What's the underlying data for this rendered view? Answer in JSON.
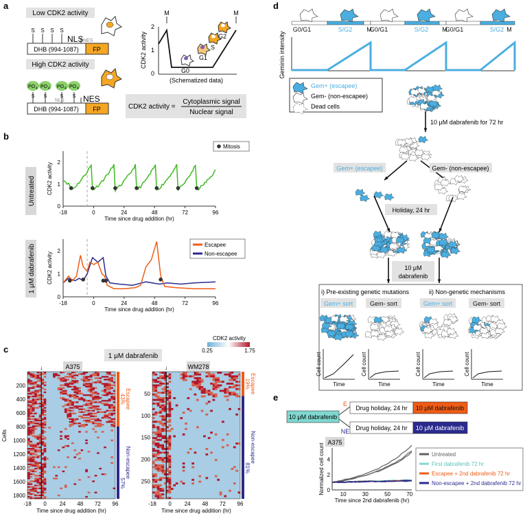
{
  "panel_letters": [
    "a",
    "b",
    "c",
    "d",
    "e"
  ],
  "a": {
    "low_title": "Low CDK2 activity",
    "high_title": "High CDK2 activity",
    "dhb": "DHB (994-1087)",
    "fp": "FP",
    "nls": "NLS",
    "nes": "NES",
    "s": "S",
    "po4": "PO",
    "po4_sub": "4",
    "sched_ylabel": "CDK2 activity",
    "sched_caption": "(Schematized data)",
    "m": "M",
    "phases": [
      "G0",
      "G1",
      "S",
      "G2"
    ],
    "ticks": [
      "0",
      "1",
      "2"
    ],
    "formula_lhs": "CDK2 activity =",
    "formula_num": "Cytoplasmic signal",
    "formula_den": "Nuclear signal"
  },
  "b": {
    "untreated_label": "Untreated",
    "dab_label": "1 μM dabrafenib",
    "ylabel": "CDK2 activity",
    "xlabel": "Time since drug addition (hr)",
    "xticks": [
      "-18",
      "0",
      "24",
      "48",
      "72",
      "96"
    ],
    "yticks": [
      "0",
      "1",
      "2"
    ],
    "mitosis": "Mitosis",
    "escapee": "Escapee",
    "non_escapee": "Non-escapee",
    "colors": {
      "untreated": "#3dbb1f",
      "escapee": "#ef5b15",
      "non_escapee": "#2a2a8e"
    }
  },
  "c": {
    "title": "1 μM dabrafenib",
    "colorbar_title": "CDK2 activity",
    "colorbar_min": "0.25",
    "colorbar_max": "1.75",
    "a375": "A375",
    "wm278": "WM278",
    "ylabel": "Cells",
    "xlabel": "Time since drug addition (hr)",
    "xticks": [
      "-18",
      "0",
      "24",
      "48",
      "72",
      "96"
    ],
    "a375_yticks": [
      "200",
      "400",
      "600",
      "800",
      "1000",
      "1200",
      "1400",
      "1600",
      "1800"
    ],
    "wm278_yticks": [
      "50",
      "100",
      "150",
      "200",
      "250"
    ],
    "escapee": "Escapee",
    "non_escapee": "Non-escapee",
    "a375_esc_pct": "43%",
    "a375_non_pct": "57%",
    "wm278_esc_pct": "19%",
    "wm278_non_pct": "81%"
  },
  "d": {
    "phases": [
      "G0/G1",
      "S/G2",
      "M",
      "G0/G1",
      "S/G2",
      "M",
      "G0/G1",
      "S/G2",
      "M"
    ],
    "geminin_label": "Geminin intensity",
    "legend": [
      "Gem+ (escapee)",
      "Gem- (non-escapee)",
      "Dead cells"
    ],
    "step1": "10 μM dabrafenib for 72 hr",
    "gem_pos": "Gem+ (escapee)",
    "gem_neg": "Gem- (non-escapee)",
    "holiday": "Holiday, 24 hr",
    "step3": "10 μM dabrafenib",
    "mech1": "i) Pre-existing genetic mutations",
    "mech2": "ii) Non-genetic mechanisms",
    "gem_pos_sort": "Gem+ sort",
    "gem_neg_sort": "Gem- sort",
    "cell_count": "Cell count",
    "time": "Time",
    "blue": "#4aaee0"
  },
  "e": {
    "start": "10 μM dabrafenib",
    "e": "E",
    "ne": "NE",
    "holiday": "Drug holiday, 24 hr",
    "redrug": "10 μM dabrafenib",
    "a375": "A375",
    "ylabel": "Normalized cell count",
    "xlabel": "Time since 2nd dabrafenib (hr)",
    "xticks": [
      "10",
      "30",
      "50",
      "70"
    ],
    "yticks": [
      "0",
      "2",
      "4"
    ],
    "legend": [
      "Untreated",
      "First dabrafenib 72 hr",
      "Escapee + 2nd dabrafenib 72 hr",
      "Non-escapee + 2nd dabrafenib 72 hr"
    ],
    "colors": [
      "#606060",
      "#7fd8cf",
      "#ef5b15",
      "#2a2a8e"
    ]
  }
}
